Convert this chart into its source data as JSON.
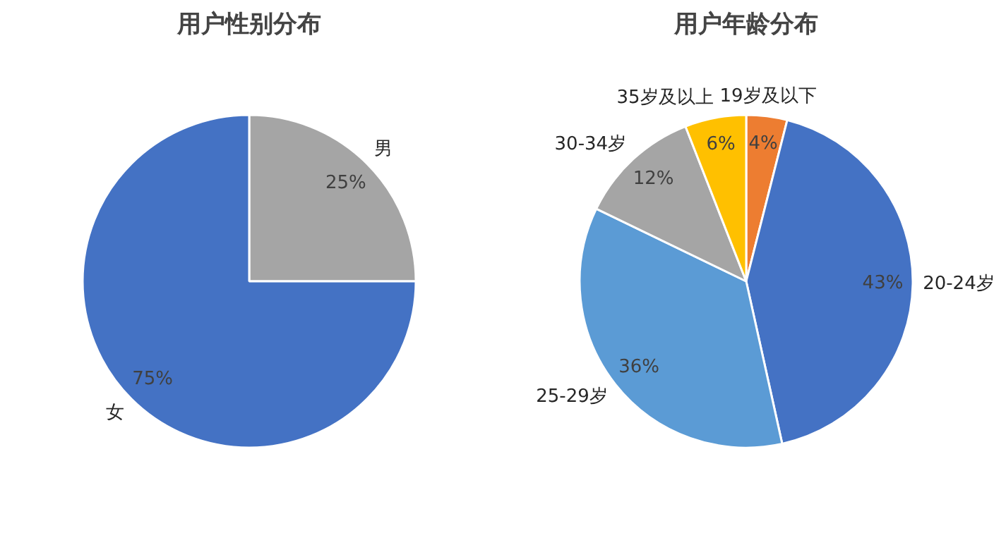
{
  "chart_data": [
    {
      "type": "pie",
      "title": "用户性别分布",
      "categories": [
        "男",
        "女"
      ],
      "values": [
        25,
        75
      ],
      "colors": [
        "#a5a5a5",
        "#4472c4"
      ],
      "value_labels": [
        "25%",
        "75%"
      ]
    },
    {
      "type": "pie",
      "title": "用户年龄分布",
      "categories": [
        "19岁及以下",
        "20-24岁",
        "25-29岁",
        "30-34岁",
        "35岁及以上"
      ],
      "values": [
        4,
        43,
        36,
        12,
        6
      ],
      "colors": [
        "#ed7d31",
        "#4472c4",
        "#5b9bd5",
        "#a5a5a5",
        "#ffc000"
      ],
      "value_labels": [
        "4%",
        "43%",
        "36%",
        "12%",
        "6%"
      ]
    }
  ]
}
